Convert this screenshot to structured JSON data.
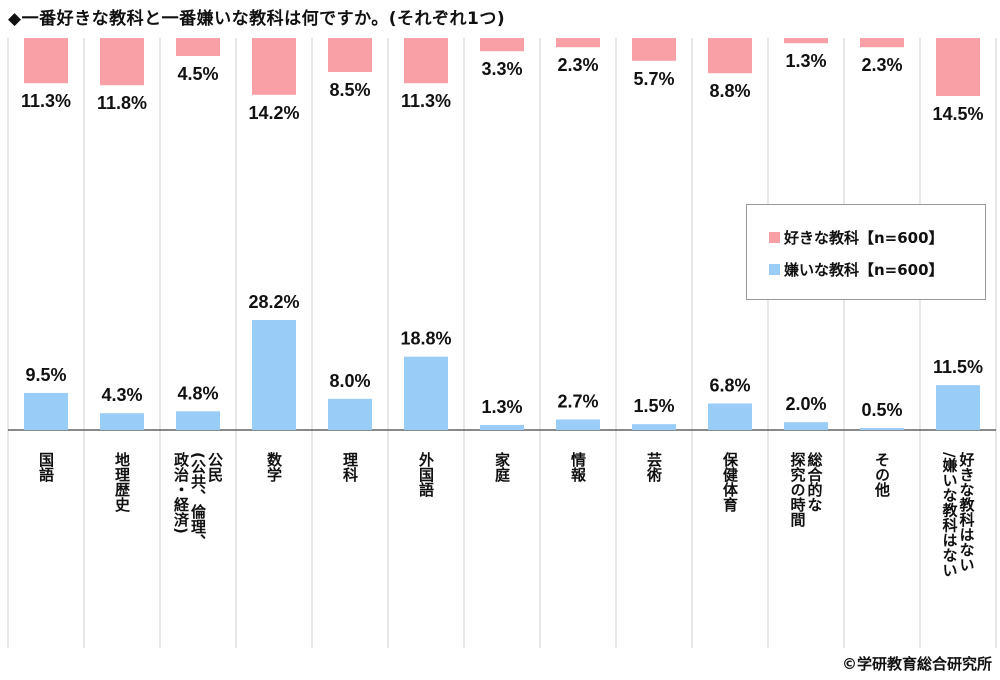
{
  "title": "◆一番好きな教科と一番嫌いな教科は何ですか。(それぞれ1つ)",
  "credit": "©学研教育総合研究所",
  "chart_data": {
    "type": "bar",
    "categories": [
      [
        "国語"
      ],
      [
        "地理歴史"
      ],
      [
        "公民",
        "(公共、倫理、",
        "政治・経済)"
      ],
      [
        "数学"
      ],
      [
        "理科"
      ],
      [
        "外国語"
      ],
      [
        "家庭"
      ],
      [
        "情報"
      ],
      [
        "芸術"
      ],
      [
        "保健体育"
      ],
      [
        "総合的な",
        "探究の時間"
      ],
      [
        "その他"
      ],
      [
        "好きな教科はない",
        "/嫌いな教科はない"
      ]
    ],
    "series": [
      {
        "name": "好きな教科【n=600】",
        "color": "#f8a0a6",
        "orientation": "down",
        "values": [
          11.3,
          11.8,
          4.5,
          14.2,
          8.5,
          11.3,
          3.3,
          2.3,
          5.7,
          8.8,
          1.3,
          2.3,
          14.5
        ],
        "labels": [
          "11.3%",
          "11.8%",
          "4.5%",
          "14.2%",
          "8.5%",
          "11.3%",
          "3.3%",
          "2.3%",
          "5.7%",
          "8.8%",
          "1.3%",
          "2.3%",
          "14.5%"
        ]
      },
      {
        "name": "嫌いな教科【n=600】",
        "color": "#99ccf7",
        "orientation": "up",
        "values": [
          9.5,
          4.3,
          4.8,
          28.2,
          8.0,
          18.8,
          1.3,
          2.7,
          1.5,
          6.8,
          2.0,
          0.5,
          11.5
        ],
        "labels": [
          "9.5%",
          "4.3%",
          "4.8%",
          "28.2%",
          "8.0%",
          "18.8%",
          "1.3%",
          "2.7%",
          "1.5%",
          "6.8%",
          "2.0%",
          "0.5%",
          "11.5%"
        ]
      }
    ],
    "legend": {
      "position": "right",
      "entries": [
        "好きな教科【n=600】",
        "嫌いな教科【n=600】"
      ]
    },
    "grid": "vertical separators"
  }
}
